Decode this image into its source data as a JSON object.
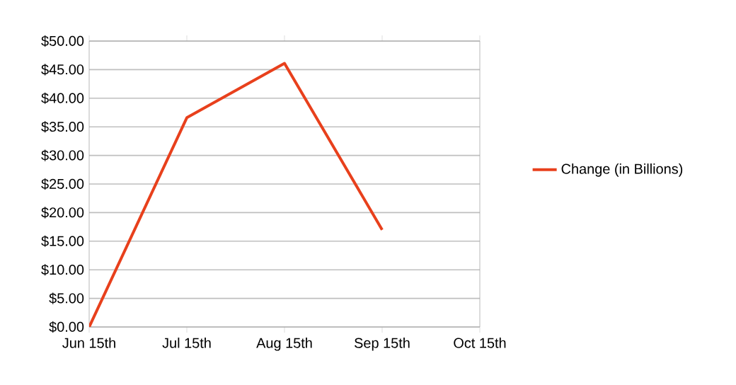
{
  "chart_data": {
    "type": "line",
    "categories": [
      "Jun 15th",
      "Jul 15th",
      "Aug 15th",
      "Sep 15th",
      "Oct 15th"
    ],
    "series": [
      {
        "name": "Change (in Billions)",
        "color": "#e8401c",
        "values": [
          0,
          36.6,
          46.1,
          17.0,
          null
        ]
      }
    ],
    "ylim": [
      0,
      50
    ],
    "yticks": [
      {
        "value": 0,
        "label": "$0.00"
      },
      {
        "value": 5,
        "label": "$5.00"
      },
      {
        "value": 10,
        "label": "$10.00"
      },
      {
        "value": 15,
        "label": "$15.00"
      },
      {
        "value": 20,
        "label": "$20.00"
      },
      {
        "value": 25,
        "label": "$25.00"
      },
      {
        "value": 30,
        "label": "$30.00"
      },
      {
        "value": 35,
        "label": "$35.00"
      },
      {
        "value": 40,
        "label": "$40.00"
      },
      {
        "value": 45,
        "label": "$45.00"
      },
      {
        "value": 50,
        "label": "$50.00"
      }
    ],
    "grid": "y",
    "legend": "right",
    "marker": "none",
    "line_style": "solid"
  }
}
